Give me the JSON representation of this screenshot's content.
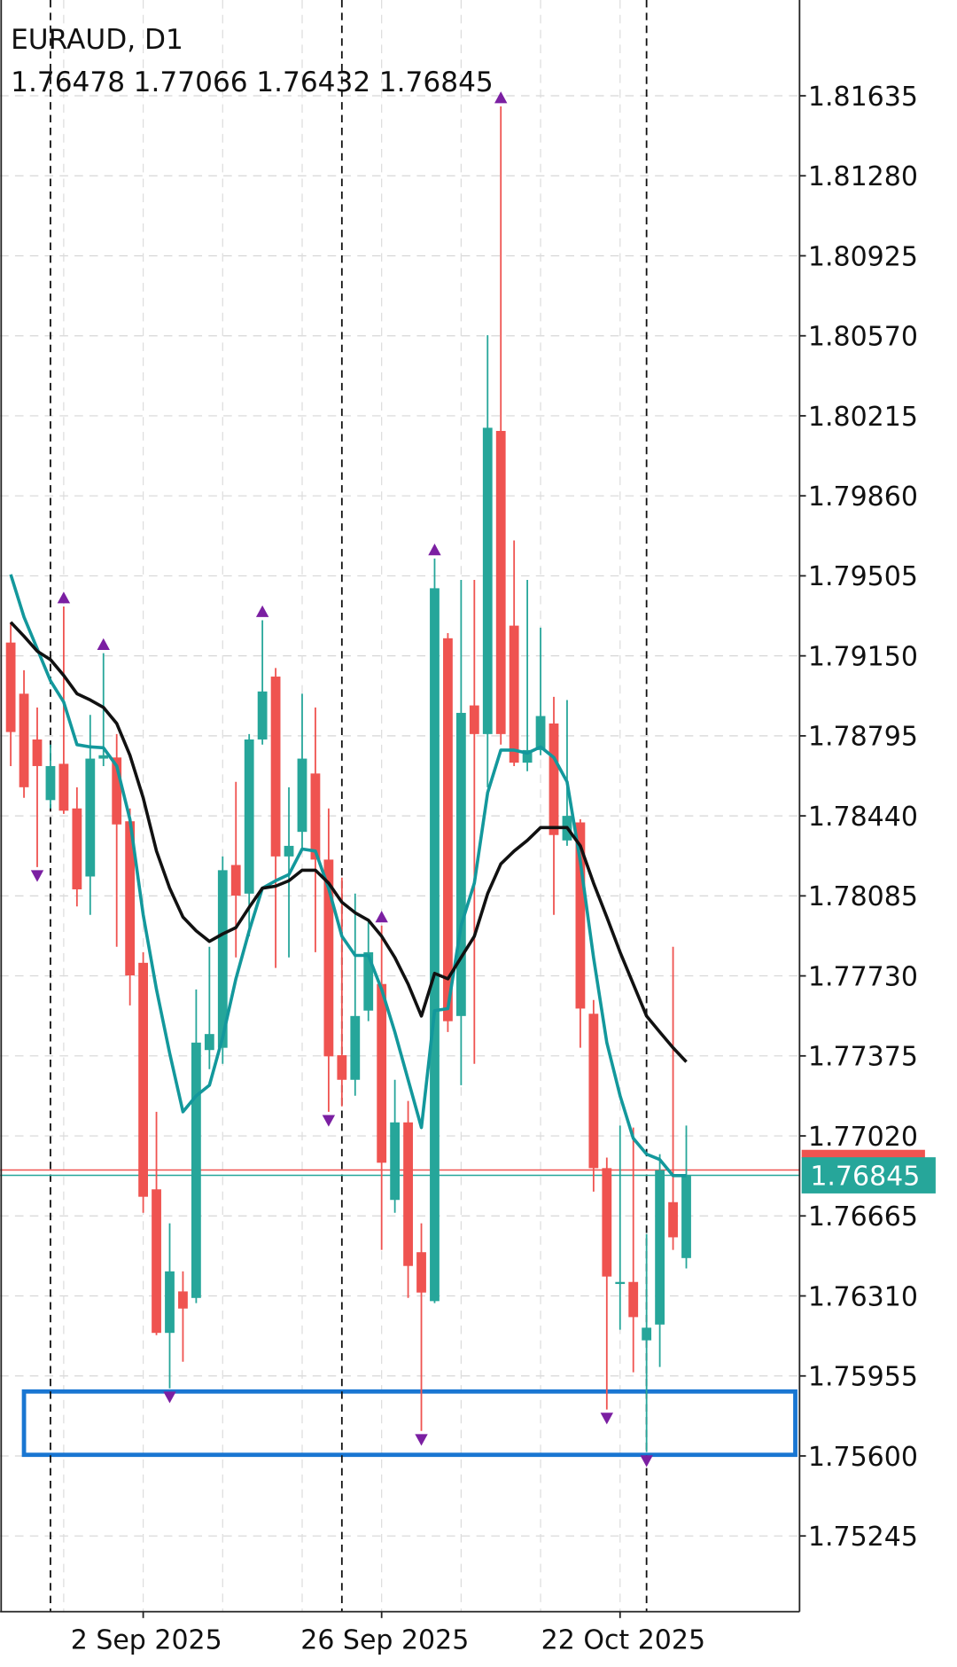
{
  "chart_data": {
    "type": "candlestick",
    "title": "EURAUD, D1",
    "categories": [
      null,
      null,
      null,
      null,
      null,
      null,
      null,
      null,
      null,
      null,
      "2 Sep 2025",
      null,
      null,
      null,
      null,
      null,
      null,
      null,
      null,
      null,
      null,
      null,
      null,
      null,
      null,
      null,
      null,
      null,
      "26 Sep 2025",
      null,
      null,
      null,
      null,
      null,
      null,
      null,
      null,
      null,
      null,
      null,
      null,
      null,
      null,
      null,
      null,
      null,
      "22 Oct 2025",
      null,
      null,
      null,
      null,
      null
    ],
    "open": [
      1.79209,
      1.78982,
      1.78779,
      1.7851,
      1.78671,
      1.78473,
      1.78171,
      1.78694,
      1.78699,
      1.78416,
      1.77788,
      1.76783,
      1.76146,
      1.7633,
      1.76301,
      1.77401,
      1.77411,
      1.78222,
      1.78095,
      1.78779,
      1.79058,
      1.7826,
      1.78369,
      1.78628,
      1.78246,
      1.77378,
      1.77269,
      1.77576,
      1.77694,
      1.76736,
      1.7708,
      1.76504,
      1.76287,
      1.79228,
      1.77552,
      1.7893,
      1.78803,
      1.80148,
      1.79284,
      1.78676,
      1.78732,
      1.7885,
      1.78331,
      1.78411,
      1.77562,
      1.76877,
      1.76363,
      1.76372,
      1.76113,
      1.76183,
      1.76726,
      1.76478
    ],
    "high": [
      1.79299,
      1.79086,
      1.78921,
      1.78756,
      1.79369,
      1.78567,
      1.78888,
      1.79162,
      1.78803,
      1.78473,
      1.77835,
      1.77127,
      1.76632,
      1.76419,
      1.7767,
      1.77859,
      1.7826,
      1.78591,
      1.78803,
      1.79308,
      1.79096,
      1.78567,
      1.78982,
      1.78921,
      1.78473,
      1.78166,
      1.78095,
      1.77977,
      1.77953,
      1.77269,
      1.77175,
      1.76632,
      1.79582,
      1.79251,
      1.79487,
      1.79487,
      1.80573,
      1.81588,
      1.79662,
      1.79487,
      1.79275,
      1.78968,
      1.78954,
      1.78425,
      1.77623,
      1.76924,
      1.77066,
      1.77057,
      1.76585,
      1.76939,
      1.77859,
      1.77066
    ],
    "low": [
      1.78661,
      1.7852,
      1.78213,
      1.78473,
      1.78449,
      1.78038,
      1.78001,
      1.78661,
      1.77859,
      1.77599,
      1.76679,
      1.76136,
      1.759,
      1.76018,
      1.76278,
      1.77316,
      1.7734,
      1.77812,
      1.77906,
      1.78756,
      1.77765,
      1.77812,
      1.78284,
      1.77835,
      1.77127,
      1.77151,
      1.77198,
      1.77529,
      1.76514,
      1.76679,
      1.76301,
      1.75711,
      1.76278,
      1.77481,
      1.77245,
      1.7734,
      1.78567,
      1.78756,
      1.78661,
      1.78638,
      1.78709,
      1.78001,
      1.78307,
      1.77411,
      1.76773,
      1.75806,
      1.7616,
      1.75971,
      1.75617,
      1.75995,
      1.76514,
      1.76432
    ],
    "close": [
      1.78812,
      1.78567,
      1.78661,
      1.78661,
      1.78463,
      1.78114,
      1.78694,
      1.78709,
      1.78402,
      1.77732,
      1.7675,
      1.76146,
      1.76419,
      1.76254,
      1.77434,
      1.77472,
      1.78199,
      1.78086,
      1.78779,
      1.78992,
      1.7826,
      1.78307,
      1.78694,
      1.78246,
      1.77373,
      1.77269,
      1.77552,
      1.77835,
      1.76901,
      1.7708,
      1.76443,
      1.76325,
      1.7945,
      1.77529,
      1.78897,
      1.78803,
      1.80162,
      1.78803,
      1.78676,
      1.78732,
      1.78883,
      1.78355,
      1.7844,
      1.77585,
      1.76877,
      1.76396,
      1.76372,
      1.76216,
      1.76169,
      1.76868,
      1.7657,
      1.76845
    ],
    "up_color": "#26a69a",
    "down_color": "#ef5350",
    "series": [
      {
        "color": "#13989c",
        "values": [
          1.79511,
          1.79322,
          1.79181,
          1.79039,
          1.78945,
          1.78756,
          1.78746,
          1.78742,
          1.78661,
          1.78425,
          1.78001,
          1.7767,
          1.77387,
          1.77127,
          1.77198,
          1.77245,
          1.77458,
          1.77717,
          1.7793,
          1.78119,
          1.78152,
          1.7818,
          1.78293,
          1.78284,
          1.78119,
          1.77906,
          1.77821,
          1.77821,
          1.7767,
          1.77481,
          1.77269,
          1.77057,
          1.77576,
          1.77585,
          1.77953,
          1.78142,
          1.78543,
          1.78732,
          1.78732,
          1.78718,
          1.78746,
          1.78699,
          1.78591,
          1.78237,
          1.77812,
          1.77434,
          1.77198,
          1.77009,
          1.76939,
          1.76915,
          1.76844,
          1.76844
        ]
      },
      {
        "color": "#111111",
        "values": [
          1.79299,
          1.79237,
          1.79171,
          1.79133,
          1.79063,
          1.78982,
          1.78954,
          1.78921,
          1.7885,
          1.78709,
          1.7852,
          1.78284,
          1.78119,
          1.77991,
          1.7793,
          1.77883,
          1.77916,
          1.77944,
          1.78034,
          1.78119,
          1.78128,
          1.78152,
          1.78199,
          1.78199,
          1.78142,
          1.78057,
          1.7801,
          1.77977,
          1.77906,
          1.77812,
          1.77694,
          1.77552,
          1.77741,
          1.77717,
          1.77812,
          1.77906,
          1.78095,
          1.78227,
          1.78284,
          1.78331,
          1.78388,
          1.78388,
          1.78388,
          1.78307,
          1.78142,
          1.77991,
          1.77835,
          1.77694,
          1.77552,
          1.77481,
          1.77411,
          1.77349
        ]
      }
    ],
    "fractals_up": [
      4,
      7,
      19,
      28,
      32,
      37
    ],
    "fractals_down": [
      2,
      12,
      24,
      31,
      45,
      48
    ],
    "fractal_color": "#7b1fa2",
    "period_separators": [
      3,
      25,
      48
    ],
    "zone": [
      1.75605,
      1.75886
    ],
    "zone_color": "#1976d2",
    "ylim": [
      1.74909,
      1.8206
    ],
    "yticks": [
      1.81635,
      {
        "value": 1.8128,
        "label": "1.81280"
      },
      1.80925,
      {
        "value": 1.8057,
        "label": "1.80570"
      },
      1.80215,
      {
        "value": 1.7986,
        "label": "1.79860"
      },
      1.79505,
      {
        "value": 1.7915,
        "label": "1.79150"
      },
      1.78795,
      {
        "value": 1.7844,
        "label": "1.78440"
      },
      1.78085,
      {
        "value": 1.7773,
        "label": "1.77730"
      },
      1.77375,
      {
        "value": 1.7702,
        "label": "1.77020"
      },
      1.76665,
      {
        "value": 1.7631,
        "label": "1.76310"
      },
      1.75955,
      {
        "value": 1.756,
        "label": "1.75600"
      },
      1.75245
    ],
    "grid": true
  }
}
